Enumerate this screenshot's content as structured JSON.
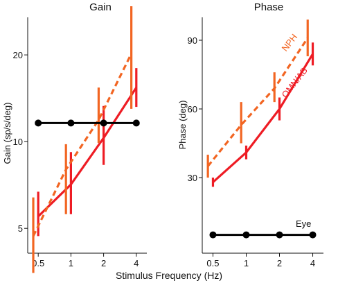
{
  "chart_data": [
    {
      "type": "line",
      "title": "Gain",
      "ylabel": "Gain (sp/s/deg)",
      "xlabel": "Stimulus Frequency (Hz)",
      "x_scale": "log",
      "y_scale": "log",
      "xticks": [
        0.5,
        1,
        2,
        4
      ],
      "xtick_labels": [
        "0.5",
        "1",
        "2",
        "4"
      ],
      "yticks": [
        5,
        10,
        20
      ],
      "ytick_labels": [
        "5",
        "10",
        "20"
      ],
      "xlim": [
        0.4,
        5.0
      ],
      "ylim": [
        4.1,
        27
      ],
      "grid": false,
      "series": [
        {
          "name": "",
          "color": "#ee1c24",
          "line_style": "solid",
          "x": [
            0.5,
            1,
            2,
            4
          ],
          "values": [
            5.5,
            7.1,
            10.3,
            15.4
          ],
          "err_low": [
            4.7,
            5.6,
            8.3,
            13.2
          ],
          "err_high": [
            6.7,
            9.2,
            13.3,
            18.0
          ]
        },
        {
          "name": "",
          "color": "#f26522",
          "line_style": "dashed",
          "x": [
            0.45,
            0.9,
            1.8,
            3.6
          ],
          "values": [
            4.7,
            8.0,
            11.9,
            20.2
          ],
          "err_low": [
            3.5,
            5.6,
            9.9,
            13.0
          ],
          "err_high": [
            6.4,
            9.8,
            15.4,
            29.5
          ]
        },
        {
          "name": "",
          "color": "#000000",
          "line_style": "solid",
          "markers": true,
          "x": [
            0.5,
            1,
            2,
            4
          ],
          "values": [
            11.6,
            11.6,
            11.6,
            11.6
          ]
        }
      ]
    },
    {
      "type": "line",
      "title": "Phase",
      "ylabel": "Phase (deg)",
      "xlabel": "Stimulus Frequency (Hz)",
      "x_scale": "log",
      "y_scale": "linear",
      "xticks": [
        0.5,
        1,
        2,
        4
      ],
      "xtick_labels": [
        "0.5",
        "1",
        "2",
        "4"
      ],
      "yticks": [
        30,
        60,
        90
      ],
      "ytick_labels": [
        "30",
        "60",
        "90"
      ],
      "xlim": [
        0.4,
        5.0
      ],
      "ylim": [
        -3,
        100
      ],
      "grid": false,
      "series": [
        {
          "name": "OMN/AB",
          "color": "#ee1c24",
          "line_style": "solid",
          "x": [
            0.5,
            1,
            2,
            4
          ],
          "values": [
            28,
            41,
            60,
            84
          ],
          "err_low": [
            26,
            38,
            55,
            79
          ],
          "err_high": [
            30,
            44,
            65,
            89
          ]
        },
        {
          "name": "NPH",
          "color": "#f26522",
          "line_style": "dashed",
          "x": [
            0.45,
            0.9,
            1.8,
            3.6
          ],
          "values": [
            35,
            53,
            69,
            91
          ],
          "err_low": [
            30,
            45,
            63,
            83
          ],
          "err_high": [
            40,
            63,
            76,
            99
          ]
        },
        {
          "name": "Eye",
          "color": "#000000",
          "line_style": "solid",
          "markers": true,
          "x": [
            0.5,
            1,
            2,
            4
          ],
          "values": [
            5,
            5,
            5,
            5
          ]
        }
      ]
    }
  ]
}
